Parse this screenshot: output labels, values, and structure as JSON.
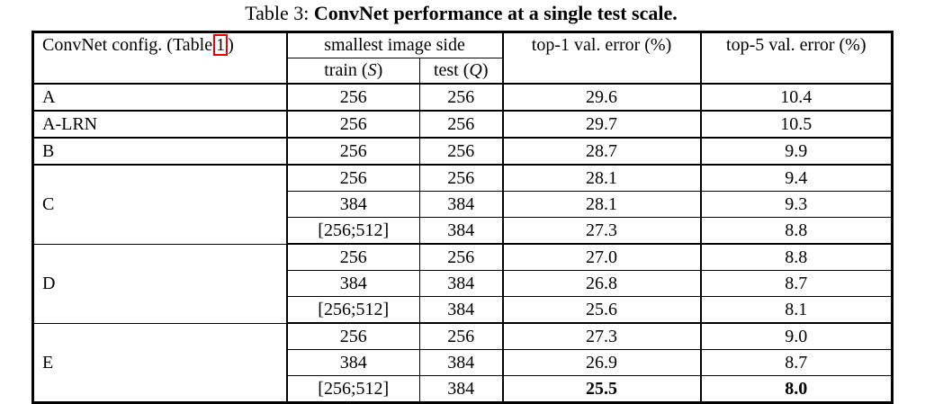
{
  "title": {
    "prefix": "Table 3: ",
    "bold": "ConvNet performance at a single test scale."
  },
  "table": {
    "headers": {
      "config_prefix": "ConvNet config. (Table",
      "config_ref": "1",
      "config_suffix": ")",
      "smallest_side": "smallest image side",
      "train_prefix": "train (",
      "train_var": "S",
      "train_suffix": ")",
      "test_prefix": "test (",
      "test_var": "Q",
      "test_suffix": ")",
      "top1": "top-1 val. error (%)",
      "top5": "top-5 val. error (%)"
    },
    "groups": [
      {
        "config": "A",
        "rows": [
          {
            "train": "256",
            "test": "256",
            "top1": "29.6",
            "top5": "10.4"
          }
        ]
      },
      {
        "config": "A-LRN",
        "rows": [
          {
            "train": "256",
            "test": "256",
            "top1": "29.7",
            "top5": "10.5"
          }
        ]
      },
      {
        "config": "B",
        "rows": [
          {
            "train": "256",
            "test": "256",
            "top1": "28.7",
            "top5": "9.9"
          }
        ]
      },
      {
        "config": "C",
        "rows": [
          {
            "train": "256",
            "test": "256",
            "top1": "28.1",
            "top5": "9.4"
          },
          {
            "train": "384",
            "test": "384",
            "top1": "28.1",
            "top5": "9.3"
          },
          {
            "train": "[256;512]",
            "test": "384",
            "top1": "27.3",
            "top5": "8.8"
          }
        ]
      },
      {
        "config": "D",
        "rows": [
          {
            "train": "256",
            "test": "256",
            "top1": "27.0",
            "top5": "8.8"
          },
          {
            "train": "384",
            "test": "384",
            "top1": "26.8",
            "top5": "8.7"
          },
          {
            "train": "[256;512]",
            "test": "384",
            "top1": "25.6",
            "top5": "8.1"
          }
        ]
      },
      {
        "config": "E",
        "rows": [
          {
            "train": "256",
            "test": "256",
            "top1": "27.3",
            "top5": "9.0"
          },
          {
            "train": "384",
            "test": "384",
            "top1": "26.9",
            "top5": "8.7"
          },
          {
            "train": "[256;512]",
            "test": "384",
            "top1": "25.5",
            "top5": "8.0",
            "bold_errors": true
          }
        ]
      }
    ]
  }
}
